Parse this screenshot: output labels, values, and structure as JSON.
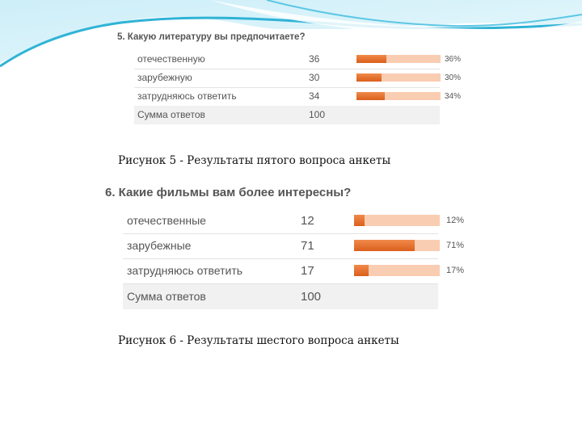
{
  "colors": {
    "accent_teal": "#2fb3d6",
    "bar_fill": "#e2692a",
    "bar_track": "#f9cdb2"
  },
  "figure5": {
    "question": "5. Какую литературу вы предпочитаете?",
    "rows": [
      {
        "label": "отечественную",
        "count": "36",
        "percent": "36%",
        "value": 0.36
      },
      {
        "label": "зарубежную",
        "count": "30",
        "percent": "30%",
        "value": 0.3
      },
      {
        "label": "затрудняюсь ответить",
        "count": "34",
        "percent": "34%",
        "value": 0.34
      }
    ],
    "total": {
      "label": "Сумма ответов",
      "count": "100"
    },
    "caption": "Рисунок 5 - Результаты пятого вопроса анкеты"
  },
  "figure6": {
    "question": "6. Какие фильмы вам более интересны?",
    "rows": [
      {
        "label": "отечественные",
        "count": "12",
        "percent": "12%",
        "value": 0.12
      },
      {
        "label": "зарубежные",
        "count": "71",
        "percent": "71%",
        "value": 0.71
      },
      {
        "label": "затрудняюсь ответить",
        "count": "17",
        "percent": "17%",
        "value": 0.17
      }
    ],
    "total": {
      "label": "Сумма ответов",
      "count": "100"
    },
    "caption": "Рисунок 6 - Результаты шестого вопроса анкеты"
  }
}
